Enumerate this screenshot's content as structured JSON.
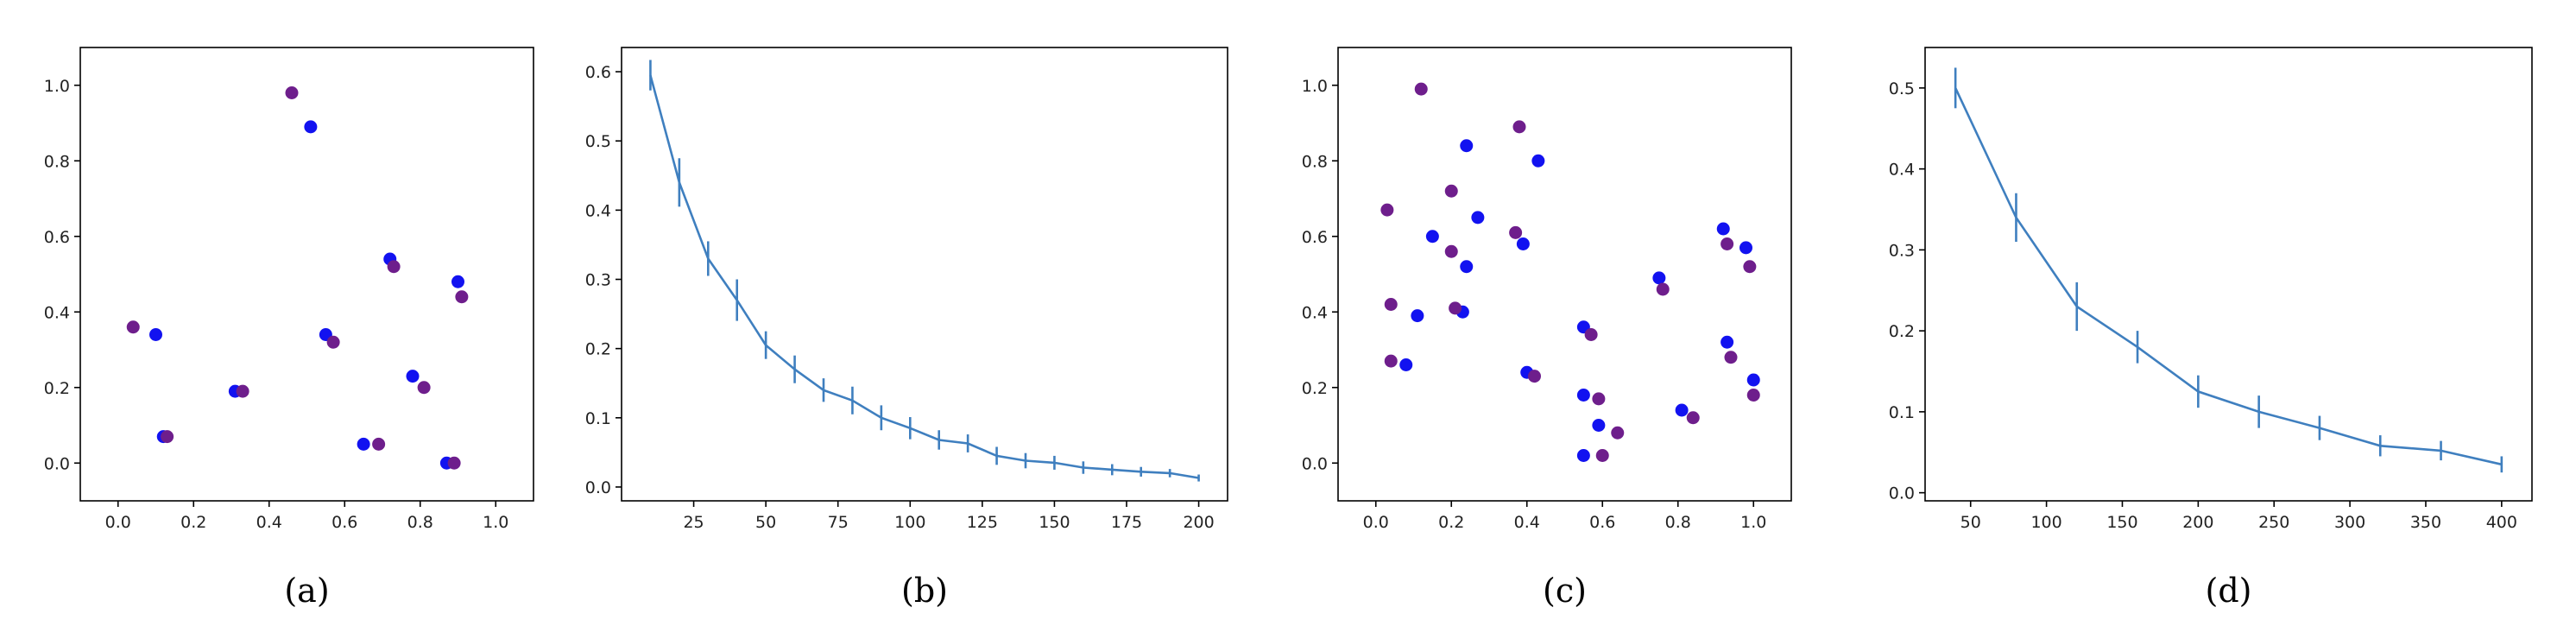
{
  "chart_data": [
    {
      "type": "scatter",
      "caption": "(a)",
      "xlim": [
        -0.1,
        1.1
      ],
      "ylim": [
        -0.1,
        1.1
      ],
      "xticks": [
        "0.0",
        "0.2",
        "0.4",
        "0.6",
        "0.8",
        "1.0"
      ],
      "yticks": [
        "0.0",
        "0.2",
        "0.4",
        "0.6",
        "0.8",
        "1.0"
      ],
      "grid": false,
      "colors": {
        "blue": "#1212f0",
        "purple": "#6e1e8c"
      },
      "series": [
        {
          "color": "blue",
          "points": [
            [
              0.1,
              0.34
            ],
            [
              0.12,
              0.07
            ],
            [
              0.31,
              0.19
            ],
            [
              0.51,
              0.89
            ],
            [
              0.55,
              0.34
            ],
            [
              0.65,
              0.05
            ],
            [
              0.72,
              0.54
            ],
            [
              0.78,
              0.23
            ],
            [
              0.87,
              0.0
            ],
            [
              0.9,
              0.48
            ]
          ]
        },
        {
          "color": "purple",
          "points": [
            [
              0.04,
              0.36
            ],
            [
              0.13,
              0.07
            ],
            [
              0.33,
              0.19
            ],
            [
              0.46,
              0.98
            ],
            [
              0.57,
              0.32
            ],
            [
              0.69,
              0.05
            ],
            [
              0.73,
              0.52
            ],
            [
              0.81,
              0.2
            ],
            [
              0.89,
              0.0
            ],
            [
              0.91,
              0.44
            ]
          ]
        }
      ]
    },
    {
      "type": "line",
      "caption": "(b)",
      "xlim": [
        0,
        210
      ],
      "ylim": [
        -0.02,
        0.635
      ],
      "xticks": [
        "25",
        "50",
        "75",
        "100",
        "125",
        "150",
        "175",
        "200"
      ],
      "yticks": [
        "0.0",
        "0.1",
        "0.2",
        "0.3",
        "0.4",
        "0.5",
        "0.6"
      ],
      "grid": false,
      "colors": {
        "line": "#3f7fbf"
      },
      "x": [
        10,
        20,
        30,
        40,
        50,
        60,
        70,
        80,
        90,
        100,
        110,
        120,
        130,
        140,
        150,
        160,
        170,
        180,
        190,
        200
      ],
      "y": [
        0.595,
        0.44,
        0.33,
        0.27,
        0.205,
        0.17,
        0.14,
        0.125,
        0.1,
        0.085,
        0.068,
        0.063,
        0.045,
        0.038,
        0.035,
        0.028,
        0.025,
        0.022,
        0.02,
        0.013
      ],
      "err": [
        0.022,
        0.035,
        0.025,
        0.03,
        0.02,
        0.02,
        0.017,
        0.02,
        0.018,
        0.016,
        0.014,
        0.013,
        0.013,
        0.011,
        0.01,
        0.009,
        0.008,
        0.007,
        0.006,
        0.005
      ]
    },
    {
      "type": "scatter",
      "caption": "(c)",
      "xlim": [
        -0.1,
        1.1
      ],
      "ylim": [
        -0.1,
        1.1
      ],
      "xticks": [
        "0.0",
        "0.2",
        "0.4",
        "0.6",
        "0.8",
        "1.0"
      ],
      "yticks": [
        "0.0",
        "0.2",
        "0.4",
        "0.6",
        "0.8",
        "1.0"
      ],
      "grid": false,
      "colors": {
        "blue": "#1212f0",
        "purple": "#6e1e8c"
      },
      "series": [
        {
          "color": "blue",
          "points": [
            [
              0.08,
              0.26
            ],
            [
              0.11,
              0.39
            ],
            [
              0.15,
              0.6
            ],
            [
              0.23,
              0.4
            ],
            [
              0.24,
              0.52
            ],
            [
              0.24,
              0.84
            ],
            [
              0.27,
              0.65
            ],
            [
              0.39,
              0.58
            ],
            [
              0.4,
              0.24
            ],
            [
              0.43,
              0.8
            ],
            [
              0.55,
              0.36
            ],
            [
              0.55,
              0.18
            ],
            [
              0.55,
              0.02
            ],
            [
              0.59,
              0.1
            ],
            [
              0.75,
              0.49
            ],
            [
              0.81,
              0.14
            ],
            [
              0.92,
              0.62
            ],
            [
              0.93,
              0.32
            ],
            [
              0.98,
              0.57
            ],
            [
              1.0,
              0.22
            ]
          ]
        },
        {
          "color": "purple",
          "points": [
            [
              0.03,
              0.67
            ],
            [
              0.04,
              0.42
            ],
            [
              0.04,
              0.27
            ],
            [
              0.12,
              0.99
            ],
            [
              0.2,
              0.56
            ],
            [
              0.2,
              0.72
            ],
            [
              0.21,
              0.41
            ],
            [
              0.37,
              0.61
            ],
            [
              0.38,
              0.89
            ],
            [
              0.42,
              0.23
            ],
            [
              0.57,
              0.34
            ],
            [
              0.59,
              0.17
            ],
            [
              0.6,
              0.02
            ],
            [
              0.64,
              0.08
            ],
            [
              0.76,
              0.46
            ],
            [
              0.84,
              0.12
            ],
            [
              0.93,
              0.58
            ],
            [
              0.94,
              0.28
            ],
            [
              0.99,
              0.52
            ],
            [
              1.0,
              0.18
            ]
          ]
        }
      ]
    },
    {
      "type": "line",
      "caption": "(d)",
      "xlim": [
        20,
        420
      ],
      "ylim": [
        -0.01,
        0.55
      ],
      "xticks": [
        "50",
        "100",
        "150",
        "200",
        "250",
        "300",
        "350",
        "400"
      ],
      "yticks": [
        "0.0",
        "0.1",
        "0.2",
        "0.3",
        "0.4",
        "0.5"
      ],
      "grid": false,
      "colors": {
        "line": "#3f7fbf"
      },
      "x": [
        40,
        80,
        120,
        160,
        200,
        240,
        280,
        320,
        360,
        400
      ],
      "y": [
        0.5,
        0.34,
        0.23,
        0.18,
        0.125,
        0.1,
        0.08,
        0.058,
        0.052,
        0.035
      ],
      "err": [
        0.025,
        0.03,
        0.03,
        0.02,
        0.02,
        0.02,
        0.015,
        0.013,
        0.012,
        0.01
      ]
    }
  ]
}
